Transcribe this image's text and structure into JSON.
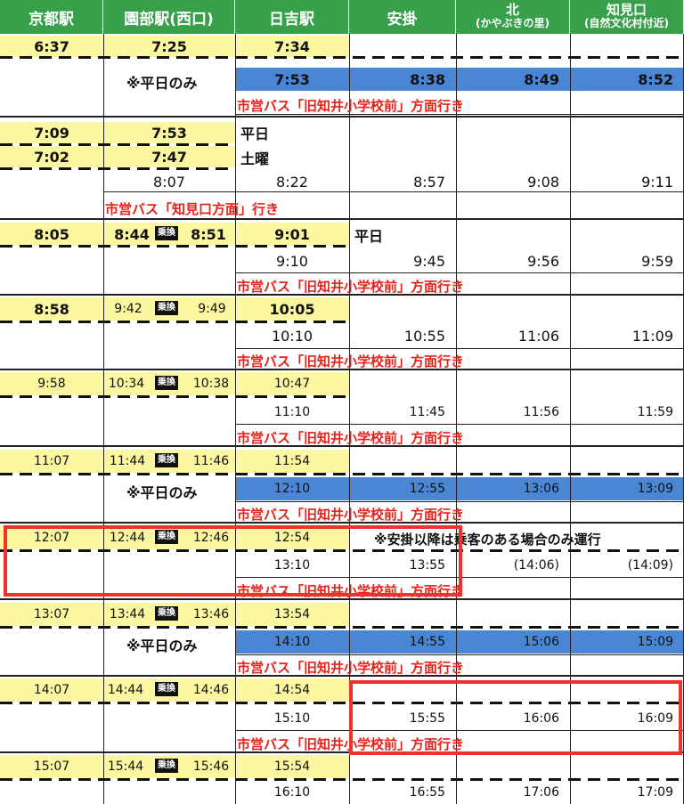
{
  "headers": {
    "kyoto": "京都駅",
    "sonobe": "園部駅(西口)",
    "hiyoshi": "日吉駅",
    "yasukake": "安掛",
    "kita_l1": "北",
    "kita_l2": "(かやぶきの里)",
    "chimi_l1": "知見口",
    "chimi_l2": "(自然文化村付近)"
  },
  "texts": {
    "weekday_only": "※平日のみ",
    "weekday": "平日",
    "saturday": "土曜",
    "transfer": "乗換",
    "bus_kyuchii": "市営バス「旧知井小学校前」方面行き",
    "bus_chimi": "市営バス「知見口方面」行き",
    "yasukake_note": "※安掛以降は乗客のある場合のみ運行"
  },
  "times": {
    "r1_kyoto": "6:37",
    "r1_sonobe": "7:25",
    "r1_hiyoshi": "7:34",
    "r2_hiyoshi": "7:53",
    "r2_yasukake": "8:38",
    "r2_kita": "8:49",
    "r2_chimi": "8:52",
    "r3_kyoto": "7:09",
    "r3_sonobe": "7:53",
    "r4_kyoto": "7:02",
    "r4_sonobe": "7:47",
    "r5_sonobe": "8:07",
    "r5_hiyoshi": "8:22",
    "r5_yasukake": "8:57",
    "r5_kita": "9:08",
    "r5_chimi": "9:11",
    "r6_kyoto": "8:05",
    "r6_sonobe_a": "8:44",
    "r6_sonobe_b": "8:51",
    "r6_hiyoshi": "9:01",
    "r7_hiyoshi": "9:10",
    "r7_yasukake": "9:45",
    "r7_kita": "9:56",
    "r7_chimi": "9:59",
    "r8_kyoto": "8:58",
    "r8_sonobe_a": "9:42",
    "r8_sonobe_b": "9:49",
    "r8_hiyoshi": "10:05",
    "r9_hiyoshi": "10:10",
    "r9_yasukake": "10:55",
    "r9_kita": "11:06",
    "r9_chimi": "11:09",
    "r10_kyoto": "9:58",
    "r10_sonobe_a": "10:34",
    "r10_sonobe_b": "10:38",
    "r10_hiyoshi": "10:47",
    "r11_hiyoshi": "11:10",
    "r11_yasukake": "11:45",
    "r11_kita": "11:56",
    "r11_chimi": "11:59",
    "r12_kyoto": "11:07",
    "r12_sonobe_a": "11:44",
    "r12_sonobe_b": "11:46",
    "r12_hiyoshi": "11:54",
    "r13_hiyoshi": "12:10",
    "r13_yasukake": "12:55",
    "r13_kita": "13:06",
    "r13_chimi": "13:09",
    "r14_kyoto": "12:07",
    "r14_sonobe_a": "12:44",
    "r14_sonobe_b": "12:46",
    "r14_hiyoshi": "12:54",
    "r15_hiyoshi": "13:10",
    "r15_yasukake": "13:55",
    "r15_kita": "(14:06)",
    "r15_chimi": "(14:09)",
    "r16_kyoto": "13:07",
    "r16_sonobe_a": "13:44",
    "r16_sonobe_b": "13:46",
    "r16_hiyoshi": "13:54",
    "r17_hiyoshi": "14:10",
    "r17_yasukake": "14:55",
    "r17_kita": "15:06",
    "r17_chimi": "15:09",
    "r18_kyoto": "14:07",
    "r18_sonobe_a": "14:44",
    "r18_sonobe_b": "14:46",
    "r18_hiyoshi": "14:54",
    "r19_hiyoshi": "15:10",
    "r19_yasukake": "15:55",
    "r19_kita": "16:06",
    "r19_chimi": "16:09",
    "r20_kyoto": "15:07",
    "r20_sonobe_a": "15:44",
    "r20_sonobe_b": "15:46",
    "r20_hiyoshi": "15:54",
    "r21_hiyoshi": "16:10",
    "r21_yasukake": "16:55",
    "r21_kita": "17:06",
    "r21_chimi": "17:09"
  },
  "colors": {
    "header_green": "#38a04a",
    "highlight_yellow": "#fbf7a0",
    "highlight_blue": "#4a86d4",
    "bus_red": "#e8221a",
    "annotation_red": "#f0312e"
  }
}
